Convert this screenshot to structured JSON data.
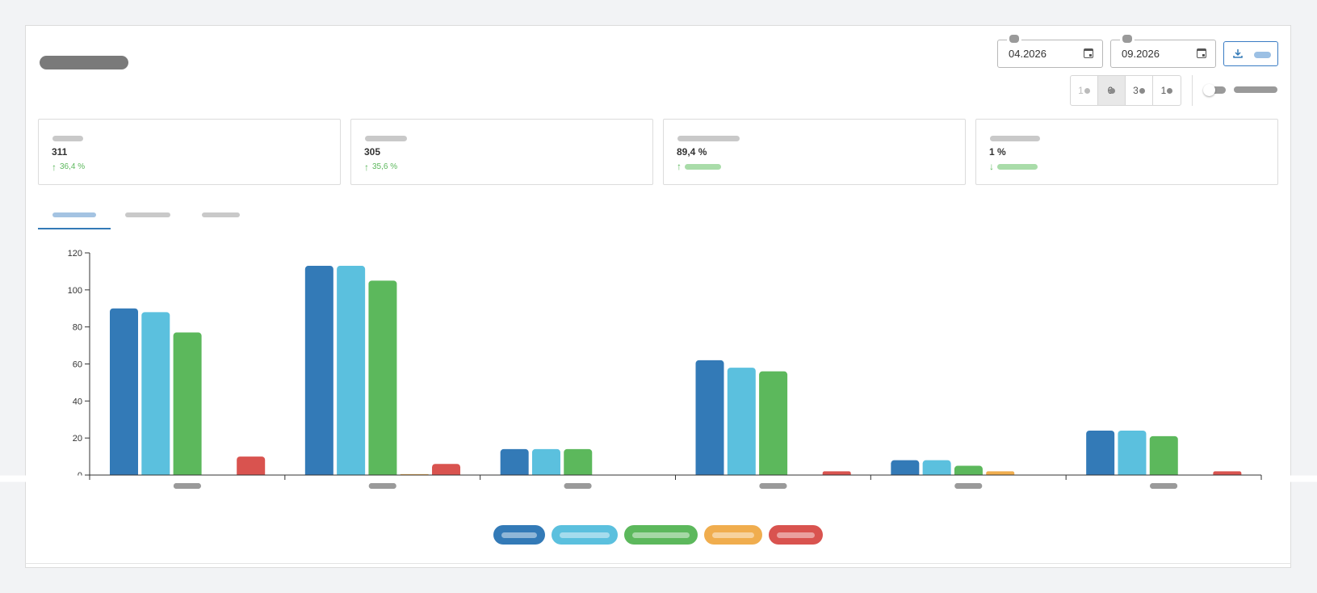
{
  "header": {
    "start_date": "04.2026",
    "end_date": "09.2026",
    "period_options": [
      {
        "label": "1",
        "disabled": true
      },
      {
        "label": "6",
        "active": true
      },
      {
        "label": "3"
      },
      {
        "label": "1"
      }
    ]
  },
  "kpis": [
    {
      "value": "311",
      "delta": "36,4 %",
      "trend": "up"
    },
    {
      "value": "305",
      "delta": "35,6 %",
      "trend": "up"
    },
    {
      "value": "89,4 %",
      "delta": "",
      "trend": "up"
    },
    {
      "value": "1 %",
      "delta": "",
      "trend": "down"
    }
  ],
  "colors": {
    "series_1": "#337ab7",
    "series_2": "#5bc0de",
    "series_3": "#5cb85c",
    "series_4": "#f0ad4e",
    "series_5": "#d9534f",
    "kpi_positive": "#5cb85c",
    "tab_active": "#337ab7"
  },
  "chart_data": {
    "type": "bar",
    "categories": [
      "",
      "",
      "",
      "",
      "",
      ""
    ],
    "series": [
      {
        "values": [
          90,
          113,
          14,
          62,
          8,
          24
        ],
        "color": "#337ab7"
      },
      {
        "values": [
          88,
          113,
          14,
          58,
          8,
          24
        ],
        "color": "#5bc0de"
      },
      {
        "values": [
          77,
          105,
          14,
          56,
          5,
          21
        ],
        "color": "#5cb85c"
      },
      {
        "values": [
          0,
          0.5,
          0,
          0,
          2,
          0
        ],
        "color": "#f0ad4e"
      },
      {
        "values": [
          10,
          6,
          0,
          2,
          0,
          2
        ],
        "color": "#d9534f"
      }
    ],
    "ylim": [
      0,
      120
    ],
    "yticks": [
      0,
      20,
      40,
      60,
      80,
      100,
      120
    ],
    "grid": false,
    "legend": "bottom-center"
  }
}
